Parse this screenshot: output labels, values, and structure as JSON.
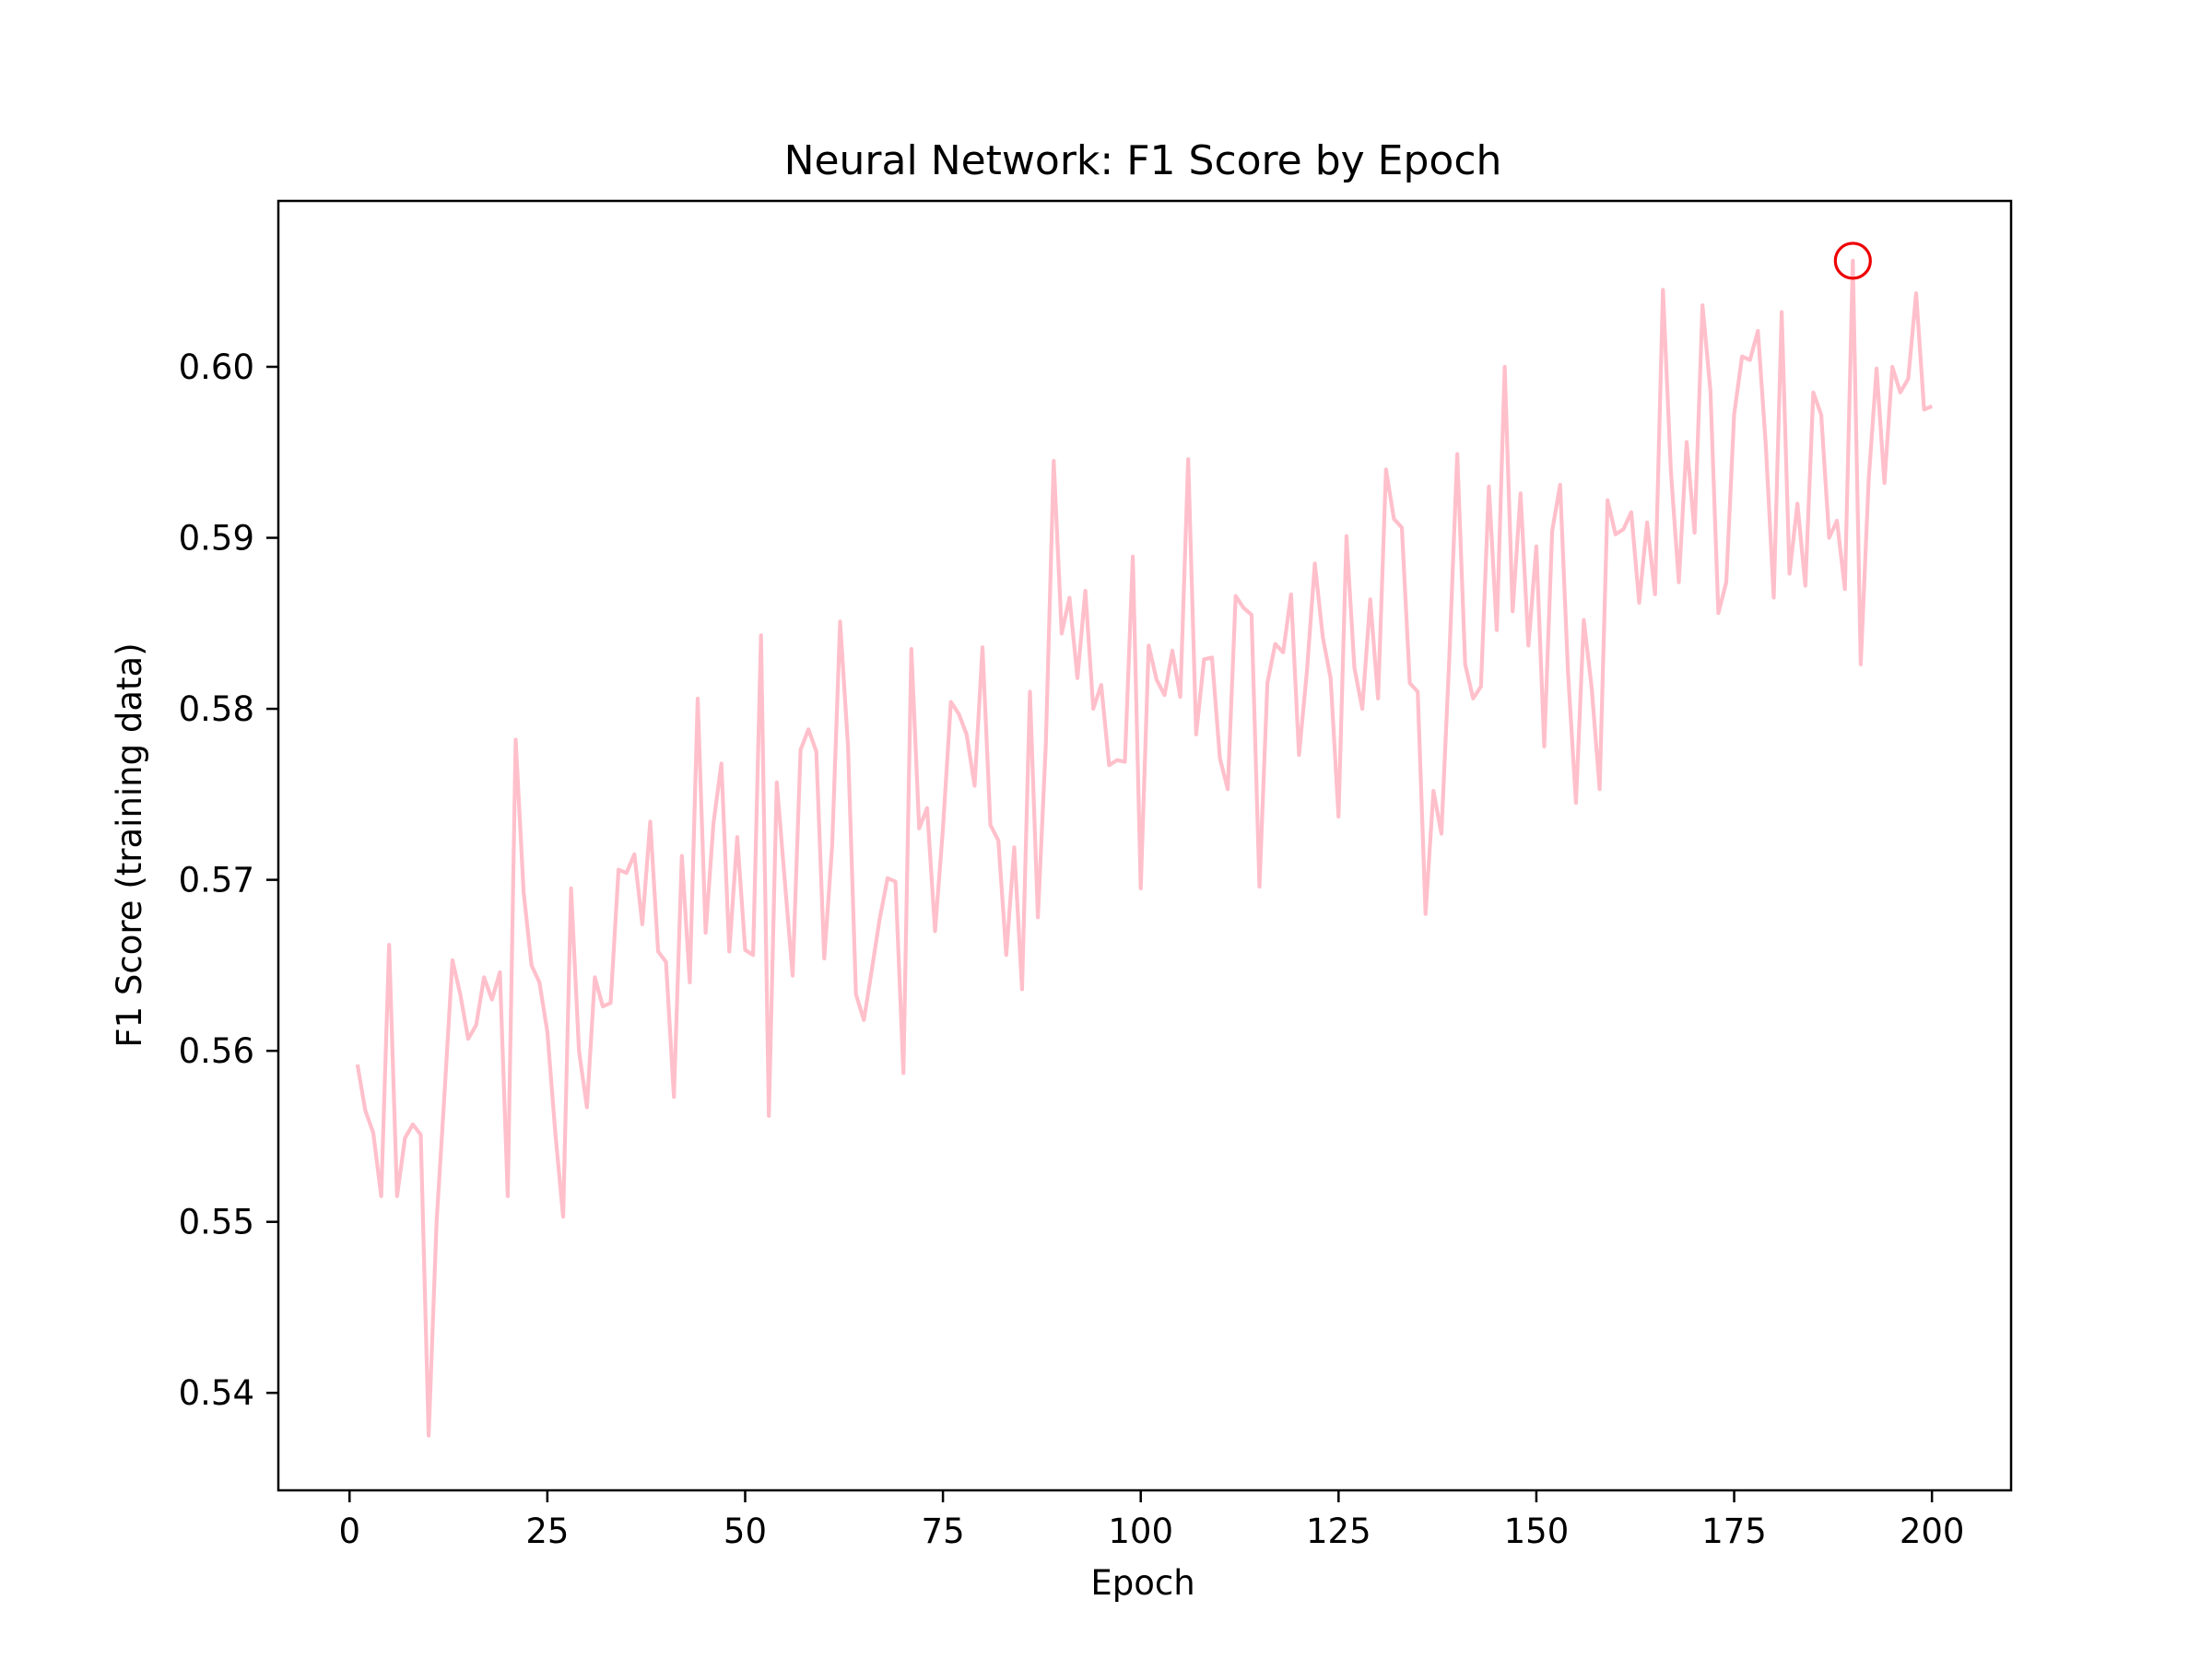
{
  "chart_data": {
    "type": "line",
    "title": "Neural Network: F1 Score by Epoch",
    "xlabel": "Epoch",
    "ylabel": "F1 Score (training data)",
    "xlim": [
      -9,
      210
    ],
    "ylim": [
      0.5343,
      0.6097
    ],
    "xticks": [
      0,
      25,
      50,
      75,
      100,
      125,
      150,
      175,
      200
    ],
    "yticks": [
      0.54,
      0.55,
      0.56,
      0.57,
      0.58,
      0.59,
      0.6
    ],
    "ytick_labels": [
      "0.54",
      "0.55",
      "0.56",
      "0.57",
      "0.58",
      "0.59",
      "0.60"
    ],
    "grid": false,
    "series": [
      {
        "color": "#ffc0cb",
        "x": [
          1,
          2,
          3,
          4,
          5,
          6,
          7,
          8,
          9,
          10,
          11,
          12,
          13,
          14,
          15,
          16,
          17,
          18,
          19,
          20,
          21,
          22,
          23,
          24,
          25,
          26,
          27,
          28,
          29,
          30,
          31,
          32,
          33,
          34,
          35,
          36,
          37,
          38,
          39,
          40,
          41,
          42,
          43,
          44,
          45,
          46,
          47,
          48,
          49,
          50,
          51,
          52,
          53,
          54,
          55,
          56,
          57,
          58,
          59,
          60,
          61,
          62,
          63,
          64,
          65,
          66,
          67,
          68,
          69,
          70,
          71,
          72,
          73,
          74,
          75,
          76,
          77,
          78,
          79,
          80,
          81,
          82,
          83,
          84,
          85,
          86,
          87,
          88,
          89,
          90,
          91,
          92,
          93,
          94,
          95,
          96,
          97,
          98,
          99,
          100,
          101,
          102,
          103,
          104,
          105,
          106,
          107,
          108,
          109,
          110,
          111,
          112,
          113,
          114,
          115,
          116,
          117,
          118,
          119,
          120,
          121,
          122,
          123,
          124,
          125,
          126,
          127,
          128,
          129,
          130,
          131,
          132,
          133,
          134,
          135,
          136,
          137,
          138,
          139,
          140,
          141,
          142,
          143,
          144,
          145,
          146,
          147,
          148,
          149,
          150,
          151,
          152,
          153,
          154,
          155,
          156,
          157,
          158,
          159,
          160,
          161,
          162,
          163,
          164,
          165,
          166,
          167,
          168,
          169,
          170,
          171,
          172,
          173,
          174,
          175,
          176,
          177,
          178,
          179,
          180,
          181,
          182,
          183,
          184,
          185,
          186,
          187,
          188,
          189,
          190,
          191,
          192,
          193,
          194,
          195,
          196,
          197,
          198,
          199,
          200
        ],
        "y": [
          0.5592,
          0.5565,
          0.5552,
          0.5515,
          0.5662,
          0.5515,
          0.5549,
          0.5557,
          0.5551,
          0.5375,
          0.55,
          0.5575,
          0.5653,
          0.5633,
          0.5607,
          0.5615,
          0.5643,
          0.563,
          0.5646,
          0.5515,
          0.5782,
          0.5693,
          0.565,
          0.564,
          0.5611,
          0.5552,
          0.5503,
          0.5695,
          0.56,
          0.5567,
          0.5643,
          0.5626,
          0.5628,
          0.5706,
          0.5704,
          0.5715,
          0.5674,
          0.5734,
          0.5658,
          0.5652,
          0.5573,
          0.5714,
          0.564,
          0.5806,
          0.5669,
          0.5733,
          0.5768,
          0.5658,
          0.5725,
          0.5659,
          0.5656,
          0.5843,
          0.5562,
          0.5757,
          0.57,
          0.5644,
          0.5776,
          0.5788,
          0.5775,
          0.5654,
          0.572,
          0.5851,
          0.5778,
          0.5633,
          0.5618,
          0.5647,
          0.5677,
          0.5701,
          0.5699,
          0.5587,
          0.5835,
          0.573,
          0.5742,
          0.567,
          0.573,
          0.5804,
          0.5797,
          0.5785,
          0.5755,
          0.5836,
          0.5732,
          0.5723,
          0.5656,
          0.5719,
          0.5636,
          0.581,
          0.5678,
          0.5779,
          0.5945,
          0.5844,
          0.5865,
          0.5818,
          0.5869,
          0.58,
          0.5814,
          0.5767,
          0.577,
          0.5769,
          0.5889,
          0.5695,
          0.5837,
          0.5817,
          0.5808,
          0.5834,
          0.5807,
          0.5946,
          0.5785,
          0.5829,
          0.583,
          0.5771,
          0.5753,
          0.5866,
          0.5859,
          0.5855,
          0.5696,
          0.5815,
          0.5838,
          0.5833,
          0.5867,
          0.5773,
          0.5822,
          0.5885,
          0.5842,
          0.5818,
          0.5737,
          0.5901,
          0.5824,
          0.58,
          0.5864,
          0.5806,
          0.594,
          0.5911,
          0.5906,
          0.5815,
          0.581,
          0.568,
          0.5752,
          0.5727,
          0.583,
          0.5949,
          0.5826,
          0.5806,
          0.5813,
          0.593,
          0.5846,
          0.6,
          0.5857,
          0.5926,
          0.5837,
          0.5895,
          0.5778,
          0.5904,
          0.5931,
          0.5821,
          0.5745,
          0.5852,
          0.5812,
          0.5753,
          0.5922,
          0.5902,
          0.5905,
          0.5915,
          0.5862,
          0.5909,
          0.5867,
          0.6045,
          0.5939,
          0.5874,
          0.5956,
          0.5903,
          0.6036,
          0.5986,
          0.5856,
          0.5874,
          0.5972,
          0.6006,
          0.6004,
          0.6021,
          0.5954,
          0.5865,
          0.6032,
          0.5879,
          0.592,
          0.5872,
          0.5985,
          0.5972,
          0.59,
          0.591,
          0.587,
          0.6062,
          0.5826,
          0.5934,
          0.5999,
          0.5932,
          0.6,
          0.5985,
          0.5993,
          0.6043,
          0.5975,
          0.5977
        ]
      }
    ],
    "highlight": {
      "x": 190,
      "y": 0.6062,
      "color": "#ee0000",
      "marker": "open-circle"
    }
  }
}
